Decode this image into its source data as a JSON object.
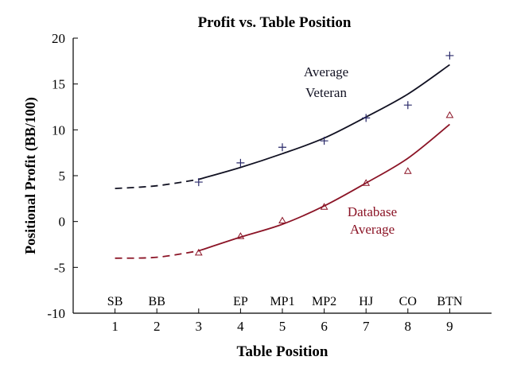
{
  "chart_data": {
    "type": "scatter",
    "title": "Profit vs. Table Position",
    "xlabel": "Table Position",
    "ylabel": "Positional Profit (BB/100)",
    "xlim": [
      0,
      10
    ],
    "ylim": [
      -10,
      20
    ],
    "xticks": [
      1,
      2,
      3,
      4,
      5,
      6,
      7,
      8,
      9
    ],
    "yticks": [
      -10,
      -5,
      0,
      5,
      10,
      15,
      20
    ],
    "grid": false,
    "position_labels": [
      {
        "x": 1,
        "label": "SB"
      },
      {
        "x": 2,
        "label": "BB"
      },
      {
        "x": 4,
        "label": "EP"
      },
      {
        "x": 5,
        "label": "MP1"
      },
      {
        "x": 6,
        "label": "MP2"
      },
      {
        "x": 7,
        "label": "HJ"
      },
      {
        "x": 8,
        "label": "CO"
      },
      {
        "x": 9,
        "label": "BTN"
      }
    ],
    "series": [
      {
        "name": "Average Veteran",
        "label_lines": [
          "Average",
          "Veteran"
        ],
        "color": "#111122",
        "marker": "plus",
        "marker_color": "#2a2a6a",
        "points": {
          "x": [
            3,
            4,
            5,
            6,
            7,
            8,
            9
          ],
          "y": [
            4.3,
            6.4,
            8.1,
            8.8,
            11.3,
            12.7,
            18.1
          ]
        },
        "fit": {
          "x": [
            1,
            2,
            3,
            4,
            5,
            6,
            7,
            8,
            9
          ],
          "y": [
            3.6,
            3.9,
            4.6,
            5.9,
            7.4,
            9.1,
            11.4,
            13.9,
            17.1
          ],
          "dashed_until": 3
        }
      },
      {
        "name": "Database Average",
        "label_lines": [
          "Database",
          "Average"
        ],
        "color": "#8b1426",
        "marker": "triangle",
        "marker_color": "#8b1426",
        "points": {
          "x": [
            3,
            4,
            5,
            6,
            7,
            8,
            9
          ],
          "y": [
            -3.4,
            -1.6,
            0.1,
            1.6,
            4.2,
            5.5,
            11.6
          ]
        },
        "fit": {
          "x": [
            1,
            2,
            3,
            4,
            5,
            6,
            7,
            8,
            9
          ],
          "y": [
            -4.0,
            -3.9,
            -3.2,
            -1.7,
            -0.3,
            1.7,
            4.2,
            6.9,
            10.6
          ],
          "dashed_until": 3
        }
      }
    ]
  }
}
